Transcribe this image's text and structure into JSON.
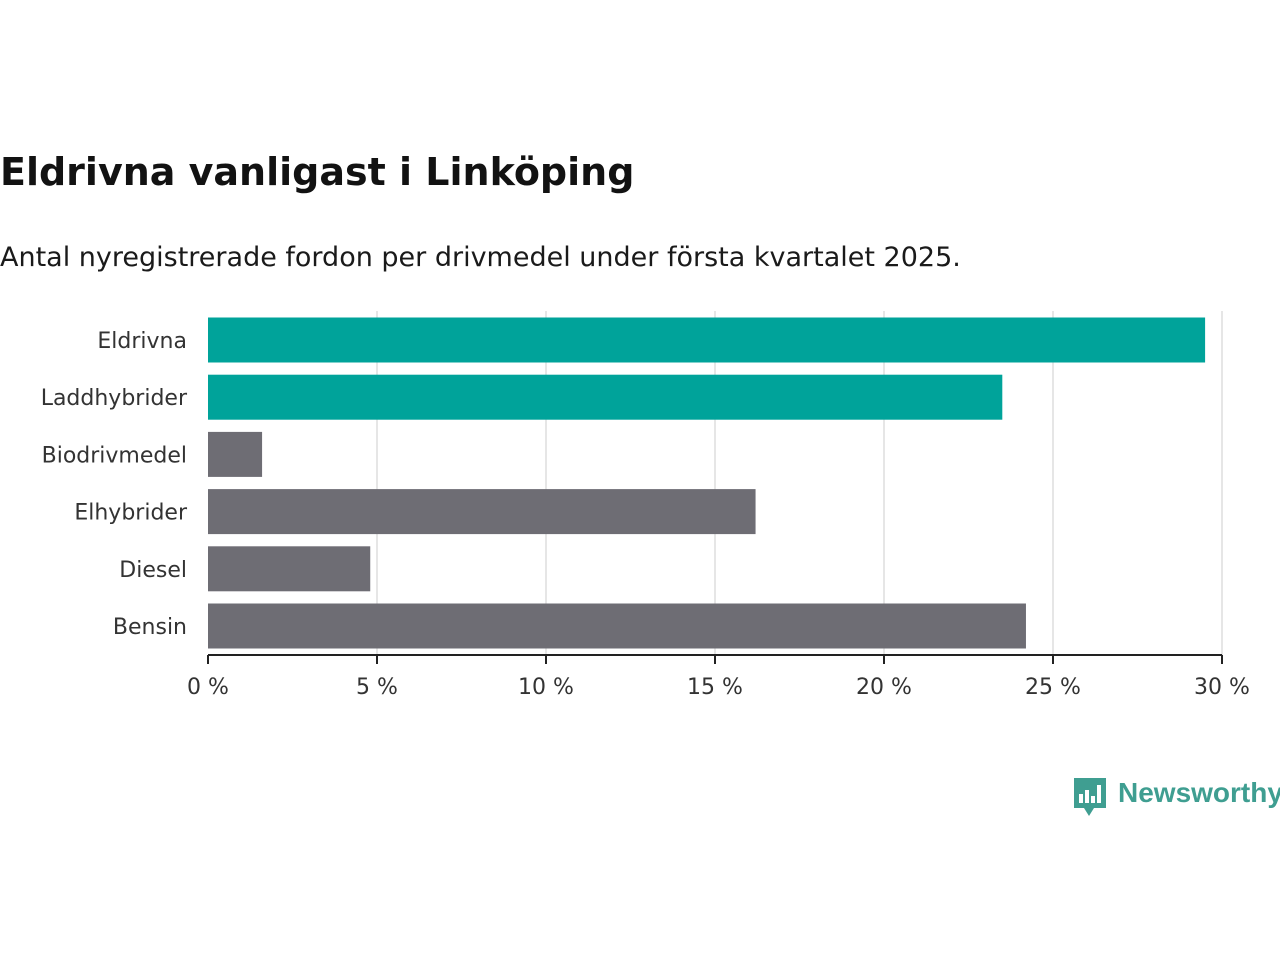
{
  "header": {
    "title": "Eldrivna vanligast i Linköping",
    "subtitle": "Antal nyregistrerade fordon per drivmedel under första kvartalet 2025."
  },
  "branding": {
    "name": "Newsworthy",
    "icon": "bar-chart-icon"
  },
  "colors": {
    "highlight": "#00a39a",
    "default": "#6e6d74",
    "grid": "#dddddd",
    "axis": "#222222",
    "brand": "#3f9e91"
  },
  "chart_data": {
    "type": "bar",
    "orientation": "horizontal",
    "categories": [
      "Eldrivna",
      "Laddhybrider",
      "Biodrivmedel",
      "Elhybrider",
      "Diesel",
      "Bensin"
    ],
    "values": [
      29.5,
      23.5,
      1.6,
      16.2,
      4.8,
      24.2
    ],
    "highlighted": [
      true,
      true,
      false,
      false,
      false,
      false
    ],
    "xlim": [
      0,
      30
    ],
    "xticks": [
      0,
      5,
      10,
      15,
      20,
      25,
      30
    ],
    "tick_labels": [
      "0 %",
      "5 %",
      "10 %",
      "15 %",
      "20 %",
      "25 %",
      "30 %"
    ],
    "grid": true,
    "legend": "none"
  }
}
